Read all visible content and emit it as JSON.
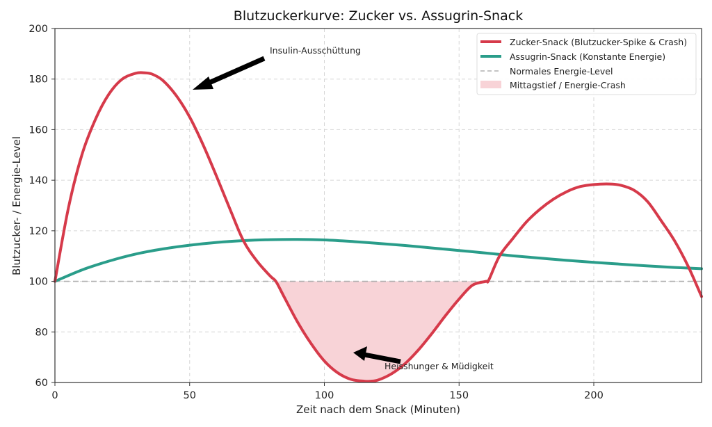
{
  "chart_data": {
    "type": "line",
    "title": "Blutzuckerkurve: Zucker vs. Assugrin-Snack",
    "xlabel": "Zeit nach dem Snack (Minuten)",
    "ylabel": "Blutzucker- / Energie-Level",
    "xlim": [
      0,
      240
    ],
    "ylim": [
      60,
      200
    ],
    "xticks": [
      0,
      50,
      100,
      150,
      200
    ],
    "yticks": [
      60,
      80,
      100,
      120,
      140,
      160,
      180,
      200
    ],
    "grid": true,
    "legend_position": "upper right",
    "series": [
      {
        "name": "Zucker-Snack (Blutzucker-Spike & Crash)",
        "color": "#d63a4a",
        "x": [
          0,
          5,
          10,
          15,
          20,
          25,
          30,
          33,
          36,
          40,
          45,
          50,
          55,
          60,
          65,
          70,
          75,
          80,
          82,
          85,
          90,
          95,
          100,
          105,
          110,
          115,
          117,
          120,
          125,
          130,
          135,
          140,
          145,
          150,
          155,
          160,
          161,
          165,
          170,
          175,
          180,
          185,
          190,
          195,
          200,
          206,
          210,
          215,
          220,
          225,
          230,
          235,
          240
        ],
        "y": [
          100,
          129,
          150,
          164,
          174,
          180,
          182.3,
          182.5,
          182,
          179.5,
          173.5,
          165,
          154,
          141.5,
          128.5,
          116,
          108,
          102,
          100,
          94,
          84,
          75.5,
          68.5,
          63.8,
          61.2,
          60.5,
          60.5,
          61,
          63.5,
          67.5,
          73,
          79.5,
          86.5,
          93,
          98.5,
          100,
          100.5,
          110,
          117,
          123.5,
          128.5,
          132.5,
          135.5,
          137.5,
          138.3,
          138.5,
          138,
          136,
          131.5,
          124,
          116,
          106,
          94
        ]
      },
      {
        "name": "Assugrin-Snack (Konstante Energie)",
        "color": "#2a9d8a",
        "x": [
          0,
          10,
          20,
          30,
          40,
          50,
          60,
          70,
          80,
          90,
          100,
          110,
          120,
          130,
          140,
          150,
          160,
          170,
          180,
          190,
          200,
          210,
          220,
          230,
          240
        ],
        "y": [
          100,
          104.5,
          108,
          110.8,
          112.8,
          114.3,
          115.4,
          116.1,
          116.5,
          116.6,
          116.4,
          115.8,
          115,
          114.2,
          113.2,
          112.2,
          111.2,
          110.1,
          109.2,
          108.3,
          107.5,
          106.8,
          106.1,
          105.5,
          105
        ]
      },
      {
        "name": "Normales Energie-Level",
        "color": "#aaaaaa",
        "style": "dashed",
        "y_constant": 100
      }
    ],
    "fill": {
      "name": "Mittagstief / Energie-Crash",
      "color": "#f4c4ca",
      "between": "Zucker-Snack < 100",
      "x_range": [
        82,
        161
      ]
    },
    "annotations": [
      {
        "text": "Insulin-Ausschüttung",
        "xy": [
          51,
          175
        ],
        "xytext": [
          80,
          190
        ]
      },
      {
        "text": "Heisshunger & Müdigkeit",
        "xy": [
          110,
          72
        ],
        "xytext": [
          130,
          66
        ]
      }
    ]
  },
  "labels": {
    "title": "Blutzuckerkurve: Zucker vs. Assugrin-Snack",
    "xlabel": "Zeit nach dem Snack (Minuten)",
    "ylabel": "Blutzucker- / Energie-Level",
    "annot1": "Insulin-Ausschüttung",
    "annot2": "Heisshunger & Müdigkeit",
    "legend": [
      "Zucker-Snack (Blutzucker-Spike & Crash)",
      "Assugrin-Snack (Konstante Energie)",
      "Normales Energie-Level",
      "Mittagstief / Energie-Crash"
    ]
  }
}
